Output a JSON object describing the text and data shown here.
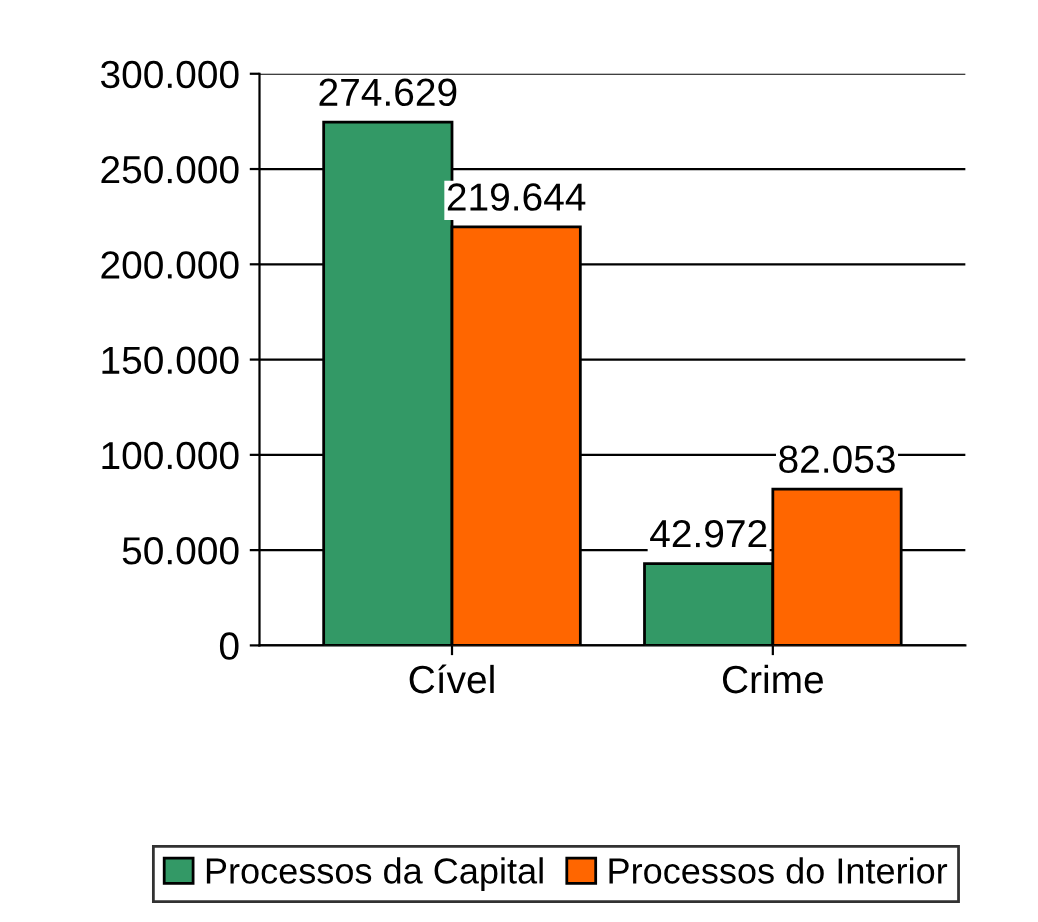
{
  "chart_data": {
    "type": "bar",
    "categories": [
      "Cível",
      "Crime"
    ],
    "series": [
      {
        "name": "Processos da Capital",
        "color": "#339966",
        "values": [
          274629,
          42972
        ],
        "value_labels": [
          "274.629",
          "42.972"
        ]
      },
      {
        "name": "Processos do Interior",
        "color": "#ff6600",
        "values": [
          219644,
          82053
        ],
        "value_labels": [
          "219.644",
          "82.053"
        ]
      }
    ],
    "ylim": [
      0,
      300000
    ],
    "yticks": [
      0,
      {
        "value": 50000,
        "label": "50.000"
      },
      {
        "value": 100000,
        "label": "100.000"
      },
      {
        "value": 150000,
        "label": "150.000"
      },
      {
        "value": 200000,
        "label": "200.000"
      },
      {
        "value": 250000,
        "label": "250.000"
      },
      {
        "value": 300000,
        "label": "300.000"
      }
    ],
    "grid": "y",
    "legend": "bottom"
  }
}
